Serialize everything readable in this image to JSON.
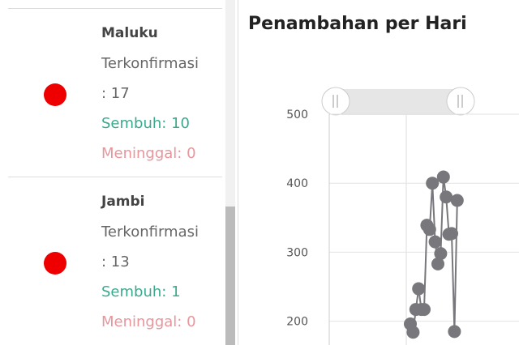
{
  "list": {
    "items": [
      {
        "name": "Maluku",
        "confirmed_label": "Terkonfirmasi",
        "confirmed": ": 17",
        "recovered": "Sembuh: 10",
        "deaths": "Meninggal: 0"
      },
      {
        "name": "Jambi",
        "confirmed_label": "Terkonfirmasi",
        "confirmed": ": 13",
        "recovered": "Sembuh: 1",
        "deaths": "Meninggal: 0"
      }
    ]
  },
  "chart": {
    "type": "line",
    "title": "Penambahan per Hari",
    "color": "#77777c",
    "values": [
      196,
      184,
      217,
      247,
      217,
      217,
      339,
      333,
      400,
      315,
      283,
      298,
      409,
      380,
      326,
      327,
      185,
      375
    ],
    "ylim": [
      0,
      500
    ],
    "yticks": [
      200,
      300,
      400,
      500
    ],
    "grid": true
  }
}
